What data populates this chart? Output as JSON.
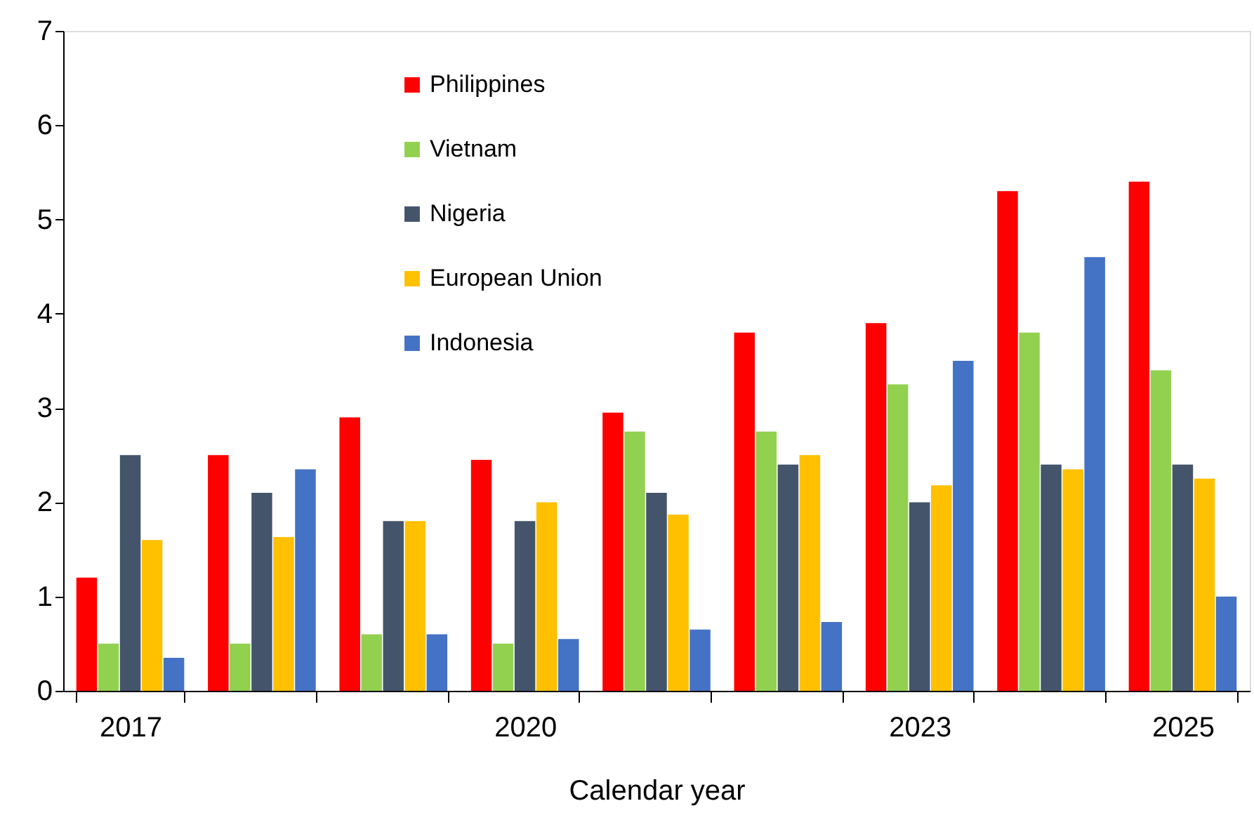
{
  "chart_data": {
    "type": "bar",
    "xlabel": "Calendar year",
    "categories": [
      "2017",
      null,
      null,
      "2020",
      null,
      null,
      "2023",
      null,
      "2025"
    ],
    "series": [
      {
        "name": "Philippines",
        "color": "#ff0000",
        "values": [
          1.2,
          2.5,
          2.9,
          2.45,
          2.95,
          3.8,
          3.9,
          5.3,
          5.4
        ]
      },
      {
        "name": "Vietnam",
        "color": "#92d050",
        "values": [
          0.5,
          0.5,
          0.6,
          0.5,
          2.75,
          2.75,
          3.25,
          3.8,
          3.4
        ]
      },
      {
        "name": "Nigeria",
        "color": "#44546a",
        "values": [
          2.5,
          2.1,
          1.8,
          1.8,
          2.1,
          2.4,
          2.0,
          2.4,
          2.4
        ]
      },
      {
        "name": "European Union",
        "color": "#ffc000",
        "values": [
          1.6,
          1.63,
          1.8,
          2.0,
          1.87,
          2.5,
          2.18,
          2.35,
          2.25
        ]
      },
      {
        "name": "Indonesia",
        "color": "#4472c4",
        "values": [
          0.35,
          2.35,
          0.6,
          0.55,
          0.65,
          0.73,
          3.5,
          4.6,
          1.0
        ]
      }
    ],
    "ylim": [
      0,
      7
    ],
    "yticks": [
      0,
      1,
      2,
      3,
      4,
      5,
      6,
      7
    ],
    "grid": false,
    "legend": "top"
  }
}
